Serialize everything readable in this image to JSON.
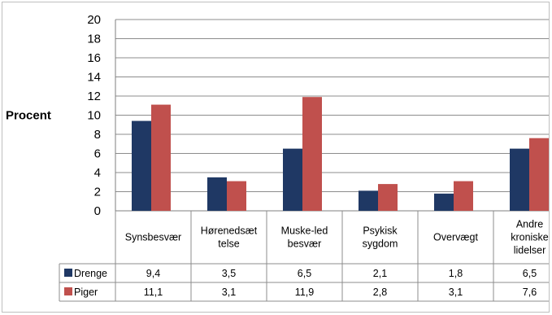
{
  "chart_data": {
    "type": "bar",
    "ylabel": "Procent",
    "ylim": [
      0,
      20
    ],
    "yticks": [
      0,
      2,
      4,
      6,
      8,
      10,
      12,
      14,
      16,
      18,
      20
    ],
    "grid": true,
    "categories": [
      [
        "Synsbesvær"
      ],
      [
        "Hørenedsæt",
        "telse"
      ],
      [
        "Muske-led",
        "besvær"
      ],
      [
        "Psykisk",
        "sygdom"
      ],
      [
        "Overvægt"
      ],
      [
        "Andre",
        "kroniske",
        "lidelser"
      ]
    ],
    "series": [
      {
        "name": "Drenge",
        "color": "#1f3864",
        "values": [
          9.4,
          3.5,
          6.5,
          2.1,
          1.8,
          6.5
        ],
        "labels": [
          "9,4",
          "3,5",
          "6,5",
          "2,1",
          "1,8",
          "6,5"
        ]
      },
      {
        "name": "Piger",
        "color": "#c0504d",
        "values": [
          11.1,
          3.1,
          11.9,
          2.8,
          3.1,
          7.6
        ],
        "labels": [
          "11,1",
          "3,1",
          "11,9",
          "2,8",
          "3,1",
          "7,6"
        ]
      }
    ],
    "legend": "data-table"
  }
}
